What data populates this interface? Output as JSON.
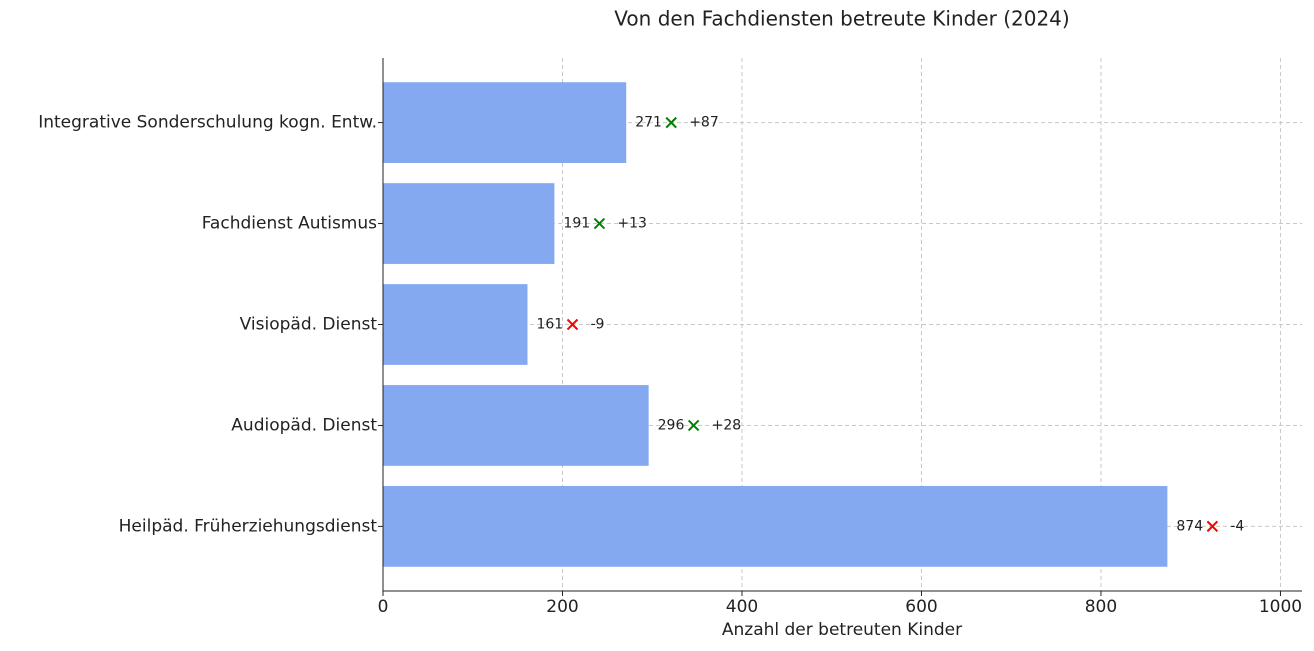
{
  "chart_data": {
    "type": "barh",
    "title": "Von den Fachdiensten betreute Kinder (2024)",
    "x_label": "Anzahl der betreuten Kinder",
    "categories": [
      "Integrative Sonderschulung kogn. Entw.",
      "Fachdienst Autismus",
      "Visiopäd. Dienst",
      "Audiopäd. Dienst",
      "Heilpäd. Früherziehungsdienst"
    ],
    "values": [
      271,
      191,
      161,
      296,
      874
    ],
    "changes": [
      87,
      13,
      -9,
      28,
      -4
    ],
    "change_labels": [
      "+87",
      "+13",
      "-9",
      "+28",
      "-4"
    ],
    "color": "#84a9f0",
    "increase_color": "#008000",
    "decrease_color": "#ff0000",
    "xlim": [
      0,
      1024
    ],
    "xticks": [
      0,
      200,
      400,
      600,
      800,
      1000
    ],
    "grid": true
  }
}
